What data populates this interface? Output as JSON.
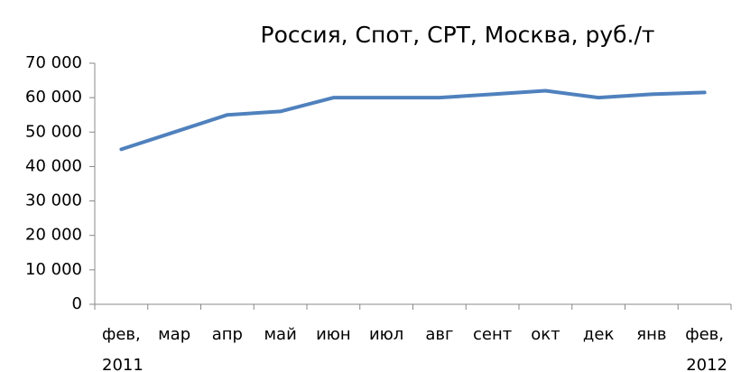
{
  "chart_data": {
    "type": "line",
    "title": "Россия, Спот, CPT, Москва, руб./т",
    "categories": [
      "фев, 2011",
      "мар",
      "апр",
      "май",
      "июн",
      "июл",
      "авг",
      "сент",
      "окт",
      "дек",
      "янв",
      "фев, 2012"
    ],
    "series": [
      {
        "name": "Россия, Спот, CPT, Москва, руб./т",
        "color": "#4f81bd",
        "values": [
          45000,
          50000,
          55000,
          56000,
          60000,
          60000,
          60000,
          61000,
          62000,
          60000,
          61000,
          61500
        ]
      }
    ],
    "ylim": [
      0,
      70000
    ],
    "yticks": [
      0,
      {
        "value": 10000,
        "label": "10 000"
      },
      {
        "value": 20000,
        "label": "20 000"
      },
      {
        "value": 30000,
        "label": "30 000"
      },
      {
        "value": 40000,
        "label": "40 000"
      },
      {
        "value": 50000,
        "label": "50 000"
      },
      {
        "value": 60000,
        "label": "60 000"
      },
      {
        "value": 70000,
        "label": "70 000"
      }
    ],
    "grid": false
  }
}
